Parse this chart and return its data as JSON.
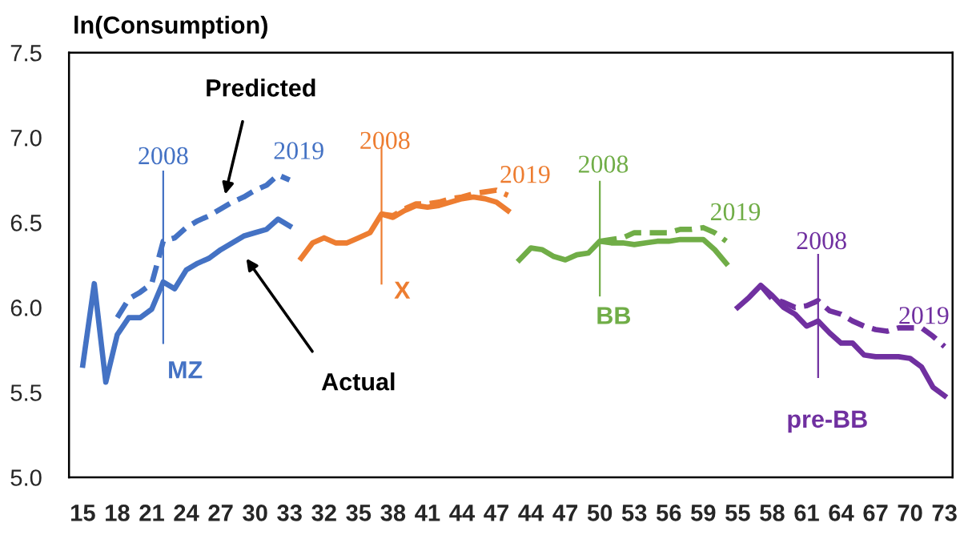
{
  "chart_data": {
    "type": "line",
    "ylabel": "ln(Consumption)",
    "categories": [
      "15",
      null,
      null,
      "18",
      null,
      null,
      "21",
      null,
      null,
      "24",
      null,
      null,
      "27",
      null,
      null,
      "30",
      null,
      null,
      "33",
      null,
      null,
      "32",
      null,
      null,
      "35",
      null,
      null,
      "38",
      null,
      null,
      "41",
      null,
      null,
      "44",
      null,
      null,
      "47",
      null,
      null,
      "44",
      null,
      null,
      "47",
      null,
      null,
      "50",
      null,
      null,
      "53",
      null,
      null,
      "56",
      null,
      null,
      "59",
      null,
      null,
      "55",
      null,
      null,
      "58",
      null,
      null,
      "61",
      null,
      null,
      "64",
      null,
      null,
      "67",
      null,
      null,
      "70",
      null,
      null,
      "73"
    ],
    "ylim": [
      5.0,
      7.5
    ],
    "yticks": [
      {
        "value": 5.0,
        "label": "5.0"
      },
      {
        "value": 5.5,
        "label": "5.5"
      },
      {
        "value": 6.0,
        "label": "6.0"
      },
      {
        "value": 6.5,
        "label": "6.5"
      },
      {
        "value": 7.0,
        "label": "7.0"
      },
      {
        "value": 7.5,
        "label": "7.5"
      }
    ],
    "series": [
      {
        "color": "#4472c4",
        "line_style": "solid",
        "values": [
          5.66,
          6.14,
          5.56,
          5.84,
          5.94,
          5.94,
          5.99,
          6.15,
          6.11,
          6.22,
          6.26,
          6.29,
          6.34,
          6.38,
          6.42,
          6.44,
          6.46,
          6.52,
          6.48,
          null,
          null,
          null,
          null,
          null,
          null,
          null,
          null,
          null,
          null,
          null,
          null,
          null,
          null,
          null,
          null,
          null,
          null,
          null,
          null,
          null,
          null,
          null,
          null,
          null,
          null,
          null,
          null,
          null,
          null,
          null,
          null,
          null,
          null,
          null,
          null,
          null,
          null,
          null,
          null,
          null,
          null,
          null,
          null,
          null,
          null,
          null,
          null,
          null,
          null,
          null,
          null,
          null,
          null,
          null,
          null,
          null
        ]
      },
      {
        "color": "#4472c4",
        "line_style": "dashed",
        "values": [
          null,
          null,
          null,
          5.94,
          6.05,
          6.09,
          6.14,
          6.39,
          6.41,
          6.47,
          6.51,
          6.54,
          6.58,
          6.62,
          6.65,
          6.69,
          6.72,
          6.78,
          6.75,
          null,
          null,
          null,
          null,
          null,
          null,
          null,
          null,
          null,
          null,
          null,
          null,
          null,
          null,
          null,
          null,
          null,
          null,
          null,
          null,
          null,
          null,
          null,
          null,
          null,
          null,
          null,
          null,
          null,
          null,
          null,
          null,
          null,
          null,
          null,
          null,
          null,
          null,
          null,
          null,
          null,
          null,
          null,
          null,
          null,
          null,
          null,
          null,
          null,
          null,
          null,
          null,
          null,
          null,
          null,
          null,
          null
        ]
      },
      {
        "color": "#ed7d31",
        "line_style": "solid",
        "values": [
          null,
          null,
          null,
          null,
          null,
          null,
          null,
          null,
          null,
          null,
          null,
          null,
          null,
          null,
          null,
          null,
          null,
          null,
          null,
          6.29,
          6.38,
          6.41,
          6.38,
          6.38,
          6.41,
          6.44,
          6.55,
          6.53,
          6.57,
          6.6,
          6.59,
          6.6,
          6.62,
          6.64,
          6.65,
          6.64,
          6.62,
          6.57,
          null,
          null,
          null,
          null,
          null,
          null,
          null,
          null,
          null,
          null,
          null,
          null,
          null,
          null,
          null,
          null,
          null,
          null,
          null,
          null,
          null,
          null,
          null,
          null,
          null,
          null,
          null,
          null,
          null,
          null,
          null,
          null,
          null,
          null,
          null,
          null,
          null,
          null
        ]
      },
      {
        "color": "#ed7d31",
        "line_style": "dashed",
        "values": [
          null,
          null,
          null,
          null,
          null,
          null,
          null,
          null,
          null,
          null,
          null,
          null,
          null,
          null,
          null,
          null,
          null,
          null,
          null,
          null,
          null,
          null,
          null,
          null,
          null,
          null,
          6.55,
          6.54,
          6.58,
          6.61,
          6.61,
          6.62,
          6.64,
          6.65,
          6.67,
          6.68,
          6.69,
          6.66,
          null,
          null,
          null,
          null,
          null,
          null,
          null,
          null,
          null,
          null,
          null,
          null,
          null,
          null,
          null,
          null,
          null,
          null,
          null,
          null,
          null,
          null,
          null,
          null,
          null,
          null,
          null,
          null,
          null,
          null,
          null,
          null,
          null,
          null,
          null,
          null,
          null,
          null
        ]
      },
      {
        "color": "#70ad47",
        "line_style": "solid",
        "values": [
          null,
          null,
          null,
          null,
          null,
          null,
          null,
          null,
          null,
          null,
          null,
          null,
          null,
          null,
          null,
          null,
          null,
          null,
          null,
          null,
          null,
          null,
          null,
          null,
          null,
          null,
          null,
          null,
          null,
          null,
          null,
          null,
          null,
          null,
          null,
          null,
          null,
          null,
          6.28,
          6.35,
          6.34,
          6.3,
          6.28,
          6.31,
          6.32,
          6.39,
          6.38,
          6.38,
          6.37,
          6.38,
          6.39,
          6.39,
          6.4,
          6.4,
          6.4,
          6.34,
          6.26,
          null,
          null,
          null,
          null,
          null,
          null,
          null,
          null,
          null,
          null,
          null,
          null,
          null,
          null,
          null,
          null,
          null,
          null,
          null
        ]
      },
      {
        "color": "#70ad47",
        "line_style": "dashed",
        "values": [
          null,
          null,
          null,
          null,
          null,
          null,
          null,
          null,
          null,
          null,
          null,
          null,
          null,
          null,
          null,
          null,
          null,
          null,
          null,
          null,
          null,
          null,
          null,
          null,
          null,
          null,
          null,
          null,
          null,
          null,
          null,
          null,
          null,
          null,
          null,
          null,
          null,
          null,
          null,
          null,
          null,
          null,
          null,
          null,
          null,
          6.39,
          6.4,
          6.41,
          6.44,
          6.44,
          6.44,
          6.44,
          6.46,
          6.46,
          6.47,
          6.44,
          6.39,
          null,
          null,
          null,
          null,
          null,
          null,
          null,
          null,
          null,
          null,
          null,
          null,
          null,
          null,
          null,
          null,
          null,
          null,
          null
        ]
      },
      {
        "color": "#7030a0",
        "line_style": "solid",
        "values": [
          null,
          null,
          null,
          null,
          null,
          null,
          null,
          null,
          null,
          null,
          null,
          null,
          null,
          null,
          null,
          null,
          null,
          null,
          null,
          null,
          null,
          null,
          null,
          null,
          null,
          null,
          null,
          null,
          null,
          null,
          null,
          null,
          null,
          null,
          null,
          null,
          null,
          null,
          null,
          null,
          null,
          null,
          null,
          null,
          null,
          null,
          null,
          null,
          null,
          null,
          null,
          null,
          null,
          null,
          null,
          null,
          null,
          6.0,
          6.06,
          6.13,
          6.07,
          6.0,
          5.96,
          5.89,
          5.92,
          5.85,
          5.79,
          5.79,
          5.72,
          5.71,
          5.71,
          5.71,
          5.7,
          5.65,
          5.53,
          5.48
        ]
      },
      {
        "color": "#7030a0",
        "line_style": "dashed",
        "values": [
          null,
          null,
          null,
          null,
          null,
          null,
          null,
          null,
          null,
          null,
          null,
          null,
          null,
          null,
          null,
          null,
          null,
          null,
          null,
          null,
          null,
          null,
          null,
          null,
          null,
          null,
          null,
          null,
          null,
          null,
          null,
          null,
          null,
          null,
          null,
          null,
          null,
          null,
          null,
          null,
          null,
          null,
          null,
          null,
          null,
          null,
          null,
          null,
          null,
          null,
          null,
          null,
          null,
          null,
          null,
          null,
          null,
          null,
          null,
          6.13,
          6.05,
          6.03,
          6.0,
          6.01,
          6.04,
          5.98,
          5.96,
          5.92,
          5.89,
          5.87,
          5.86,
          5.88,
          5.88,
          5.88,
          5.83,
          5.77
        ]
      }
    ],
    "annotations": [
      "Predicted",
      "Actual",
      "2008",
      "2019",
      "MZ",
      "2008",
      "2019",
      "X",
      "2008",
      "2019",
      "BB",
      "2008",
      "2019",
      "pre-BB"
    ]
  }
}
